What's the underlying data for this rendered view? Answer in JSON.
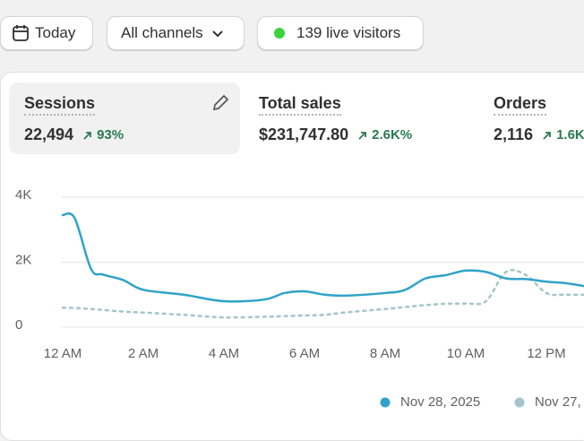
{
  "toolbar": {
    "date": "Today",
    "channels": "All channels",
    "live": "139 live visitors"
  },
  "metrics": [
    {
      "label": "Sessions",
      "value": "22,494",
      "change": "93%"
    },
    {
      "label": "Total sales",
      "value": "$231,747.80",
      "change": "2.6K%"
    },
    {
      "label": "Orders",
      "value": "2,116",
      "change": "1.6K"
    }
  ],
  "chart_data": {
    "type": "line",
    "x": [
      0,
      0.3,
      0.7,
      1,
      1.5,
      2,
      3,
      4,
      5,
      5.5,
      6,
      6.5,
      7,
      8,
      8.5,
      9,
      9.5,
      10,
      10.5,
      11,
      11.5,
      12,
      12.5,
      13
    ],
    "xlim": [
      0,
      13
    ],
    "xticks": [
      {
        "value": 0,
        "label": "12 AM"
      },
      {
        "value": 2,
        "label": "2 AM"
      },
      {
        "value": 4,
        "label": "4 AM"
      },
      {
        "value": 6,
        "label": "6 AM"
      },
      {
        "value": 8,
        "label": "8 AM"
      },
      {
        "value": 10,
        "label": "10 AM"
      },
      {
        "value": 12,
        "label": "12 PM"
      }
    ],
    "ylim": [
      0,
      4000
    ],
    "yticks": [
      0,
      {
        "value": 2000,
        "label": "2K"
      },
      {
        "value": 4000,
        "label": "4K"
      }
    ],
    "grid": true,
    "legend": "bottom-right",
    "series": [
      {
        "name": "Nov 28, 2025",
        "color": "#2fa3c7",
        "values": [
          3450,
          3350,
          1800,
          1620,
          1450,
          1150,
          1000,
          800,
          850,
          1050,
          1100,
          1000,
          970,
          1050,
          1150,
          1500,
          1600,
          1740,
          1700,
          1500,
          1480,
          1400,
          1350,
          1250
        ]
      },
      {
        "name": "Nov 27,",
        "color": "#a7c4cc",
        "values": [
          600,
          590,
          560,
          530,
          480,
          450,
          380,
          300,
          320,
          340,
          360,
          380,
          450,
          560,
          620,
          680,
          720,
          730,
          800,
          1700,
          1600,
          1050,
          1000,
          1000
        ]
      }
    ]
  }
}
